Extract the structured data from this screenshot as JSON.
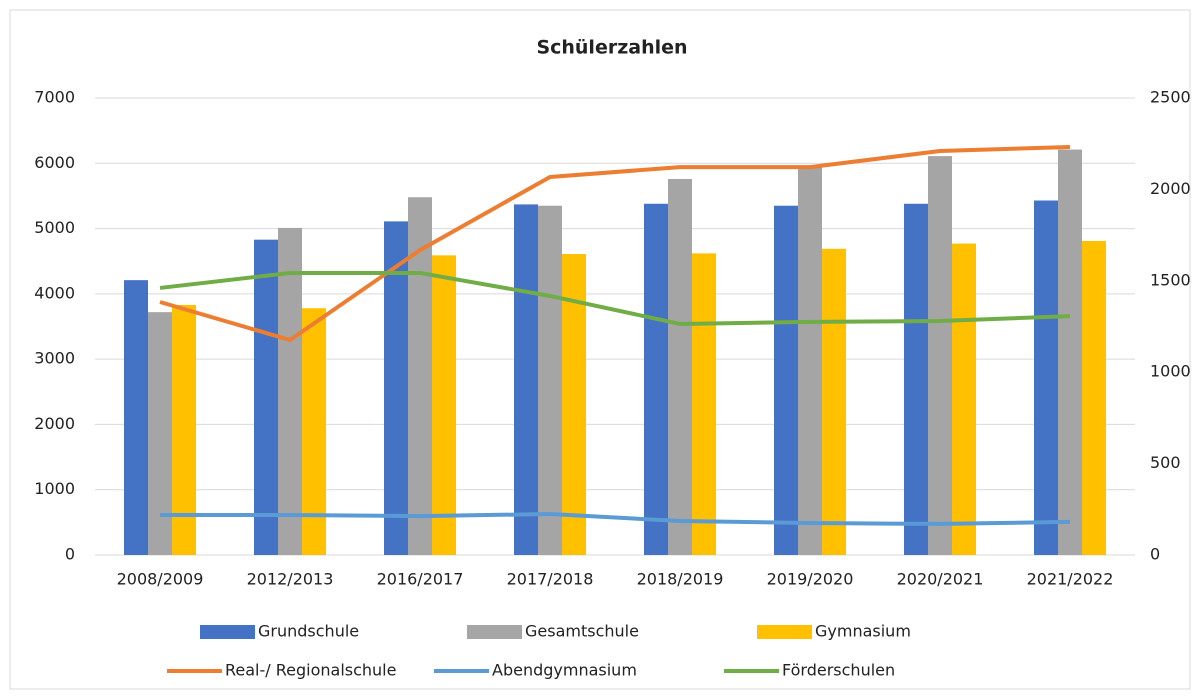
{
  "chart_data": {
    "type": "bar_line",
    "title": "Schülerzahlen",
    "categories": [
      "2008/2009",
      "2012/2013",
      "2016/2017",
      "2017/2018",
      "2018/2019",
      "2019/2020",
      "2020/2021",
      "2021/2022"
    ],
    "series": [
      {
        "name": "Grundschule",
        "type": "bar",
        "color": "#4472c4",
        "values": [
          4210,
          4830,
          5110,
          5370,
          5380,
          5350,
          5380,
          5430
        ]
      },
      {
        "name": "Gesamtschule",
        "type": "bar",
        "color": "#a5a5a5",
        "values": [
          3720,
          5010,
          5480,
          5350,
          5760,
          5950,
          6110,
          6210
        ]
      },
      {
        "name": "Gymnasium",
        "type": "bar",
        "color": "#ffc000",
        "values": [
          3830,
          3780,
          4590,
          4610,
          4620,
          4690,
          4770,
          4810
        ]
      },
      {
        "name": "Real-/ Regionalschule",
        "type": "line",
        "axis": "y2",
        "color": "#ed7d31",
        "values": [
          1384,
          1176,
          1668,
          2068,
          2122,
          2122,
          2210,
          2232
        ]
      },
      {
        "name": "Abendgymnasium",
        "type": "line",
        "axis": "y2",
        "color": "#5b9bd5",
        "values": [
          219,
          219,
          213,
          224,
          186,
          175,
          170,
          181
        ]
      },
      {
        "name": "Förderschulen",
        "type": "line",
        "axis": "y2",
        "color": "#70ad47",
        "values": [
          1461,
          1543,
          1543,
          1417,
          1264,
          1275,
          1280,
          1307
        ]
      }
    ],
    "ylim": [
      0,
      7000
    ],
    "yticks": [
      0,
      1000,
      2000,
      3000,
      4000,
      5000,
      6000,
      7000
    ],
    "y2lim": [
      0,
      2500
    ],
    "y2ticks": [
      0,
      500,
      1000,
      1500,
      2000,
      2500
    ],
    "grid": true
  }
}
